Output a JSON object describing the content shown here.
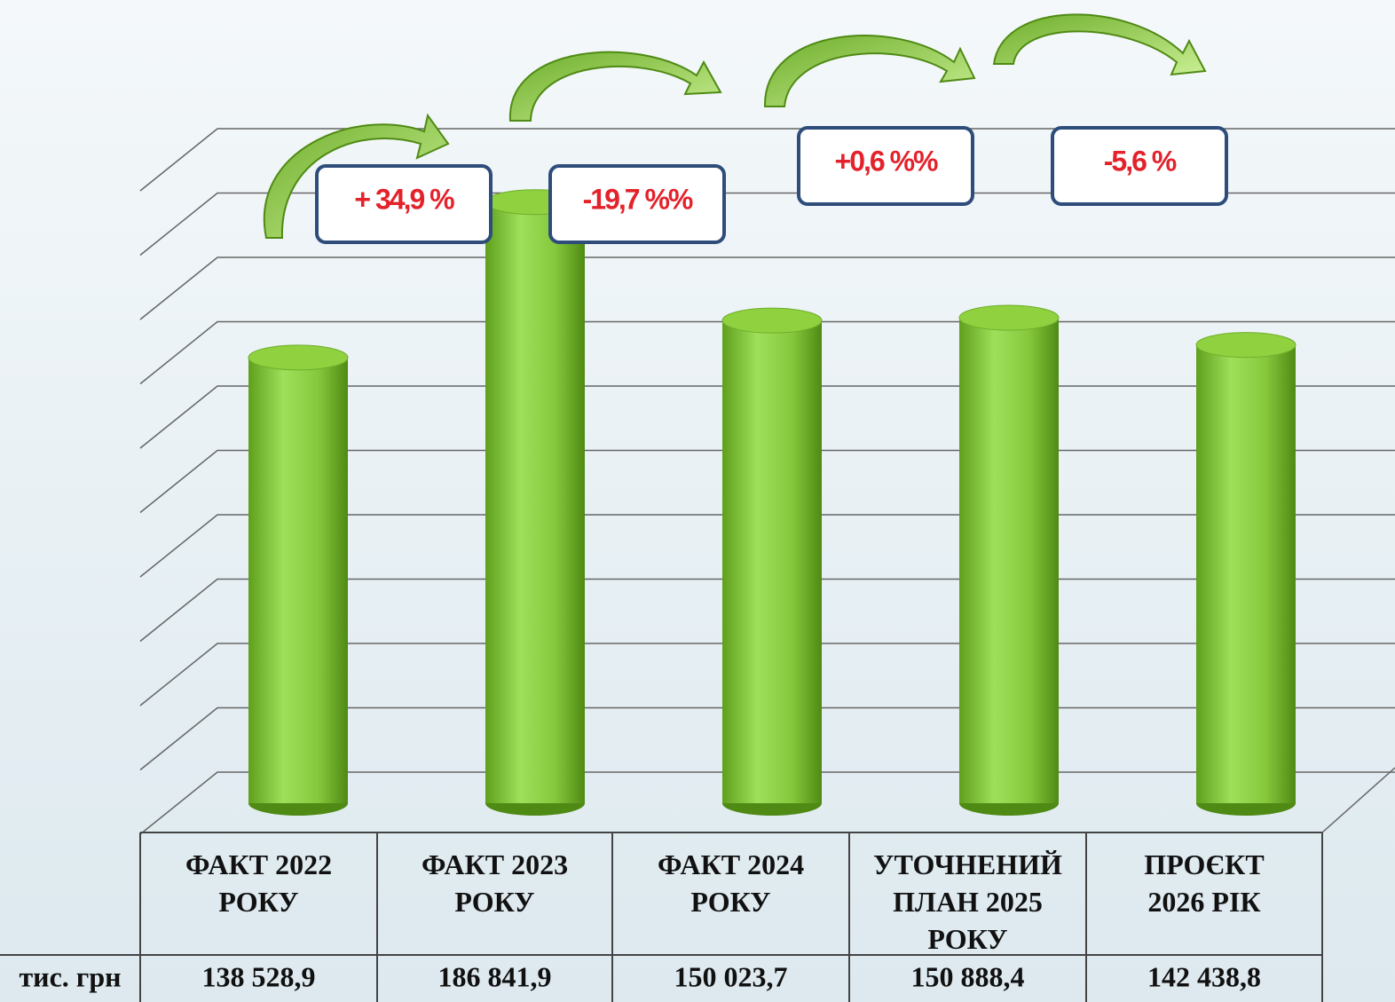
{
  "chart_data": {
    "type": "bar",
    "categories": [
      "ФАКТ 2022 РОКУ",
      "ФАКТ 2023 РОКУ",
      "ФАКТ 2024 РОКУ",
      "УТОЧНЕНИЙ ПЛАН 2025 РОКУ",
      "ПРОЄКТ 2026 РІК"
    ],
    "values": [
      138528.9,
      186841.9,
      150023.7,
      150888.4,
      142438.8
    ],
    "value_labels": [
      "138 528,9",
      "186 841,9",
      "150 023,7",
      "150 888,4",
      "142 438,8"
    ],
    "row_label": "тис. грн",
    "annotations": [
      "+ 34,9 %",
      "-19,7 %%",
      "+0,6 %%",
      "-5,6 %"
    ],
    "color": "#8fd13f",
    "ylim": [
      0,
      200000
    ],
    "yticks": [
      0,
      20000,
      40000,
      60000,
      80000,
      100000,
      120000,
      140000,
      160000,
      180000,
      200000
    ],
    "grid": true
  }
}
